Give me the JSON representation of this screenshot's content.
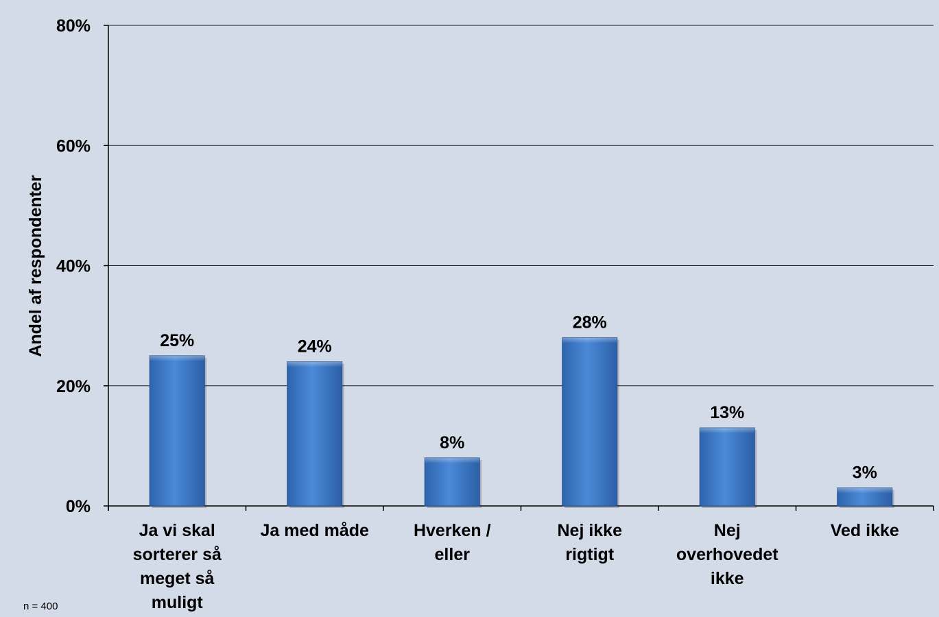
{
  "chart_data": {
    "type": "bar",
    "categories": [
      [
        "Ja vi skal",
        "sorterer så",
        "meget så",
        "muligt"
      ],
      [
        "Ja med måde"
      ],
      [
        "Hverken /",
        "eller"
      ],
      [
        "Nej ikke",
        "rigtigt"
      ],
      [
        "Nej",
        "overhovedet",
        "ikke"
      ],
      [
        "Ved ikke"
      ]
    ],
    "values": [
      25,
      24,
      8,
      28,
      13,
      3
    ],
    "data_labels": [
      "25%",
      "24%",
      "8%",
      "28%",
      "13%",
      "3%"
    ],
    "ylabel": "Andel af respondenter",
    "ylim": [
      0,
      80
    ],
    "yticks": [
      0,
      20,
      40,
      60,
      80
    ],
    "ytick_labels": [
      "0%",
      "20%",
      "40%",
      "60%",
      "80%"
    ],
    "grid": true,
    "bar_color": "#3f7fcf",
    "background_color": "#d3dae8"
  },
  "footnote": "n = 400"
}
